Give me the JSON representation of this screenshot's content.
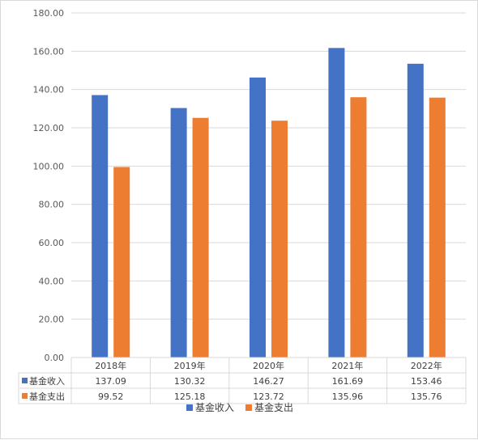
{
  "chart_data": {
    "type": "bar",
    "title": "",
    "xlabel": "",
    "ylabel": "",
    "categories": [
      "2018年",
      "2019年",
      "2020年",
      "2021年",
      "2022年"
    ],
    "series": [
      {
        "name": "基金收入",
        "color": "#4472C4",
        "values": [
          137.09,
          130.32,
          146.27,
          161.69,
          153.46
        ],
        "labels": [
          "137.09",
          "130.32",
          "146.27",
          "161.69",
          "153.46"
        ]
      },
      {
        "name": "基金支出",
        "color": "#ED7D31",
        "values": [
          99.52,
          125.18,
          123.72,
          135.96,
          135.76
        ],
        "labels": [
          "99.52",
          "125.18",
          "123.72",
          "135.96",
          "135.76"
        ]
      }
    ],
    "ylim": [
      0,
      180
    ],
    "yticks": [
      "0.00",
      "20.00",
      "40.00",
      "60.00",
      "80.00",
      "100.00",
      "120.00",
      "140.00",
      "160.00",
      "180.00"
    ],
    "grid": true,
    "data_table": true,
    "legend": "bottom"
  }
}
